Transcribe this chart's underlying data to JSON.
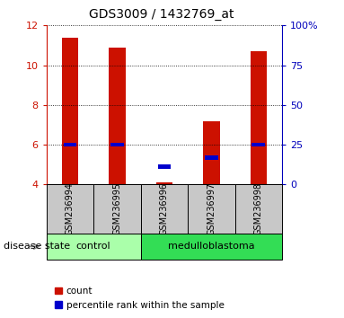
{
  "title": "GDS3009 / 1432769_at",
  "samples": [
    "GSM236994",
    "GSM236995",
    "GSM236996",
    "GSM236997",
    "GSM236998"
  ],
  "red_values": [
    11.4,
    10.9,
    4.1,
    7.2,
    10.7
  ],
  "blue_values": [
    6.0,
    6.0,
    4.9,
    5.35,
    6.0
  ],
  "ymin": 4,
  "ymax": 12,
  "yticks": [
    4,
    6,
    8,
    10,
    12
  ],
  "right_yticks": [
    0,
    25,
    50,
    75,
    100
  ],
  "right_yticklabels": [
    "0",
    "25",
    "50",
    "75",
    "100%"
  ],
  "bar_color": "#CC1100",
  "blue_color": "#0000CC",
  "bar_width": 0.35,
  "blue_bar_width": 0.28,
  "blue_bar_height": 0.2,
  "legend_count_label": "count",
  "legend_pct_label": "percentile rank within the sample",
  "disease_state_label": "disease state",
  "left_axis_color": "#CC1100",
  "right_axis_color": "#0000BB",
  "grid_color": "black",
  "label_area_color": "#C8C8C8",
  "control_bg": "#AAFFAA",
  "medulloblastoma_bg": "#33DD55",
  "control_n": 2,
  "medulloblastoma_n": 3,
  "title_fontsize": 10,
  "tick_fontsize": 8,
  "label_fontsize": 7,
  "disease_fontsize": 8,
  "legend_fontsize": 7.5
}
